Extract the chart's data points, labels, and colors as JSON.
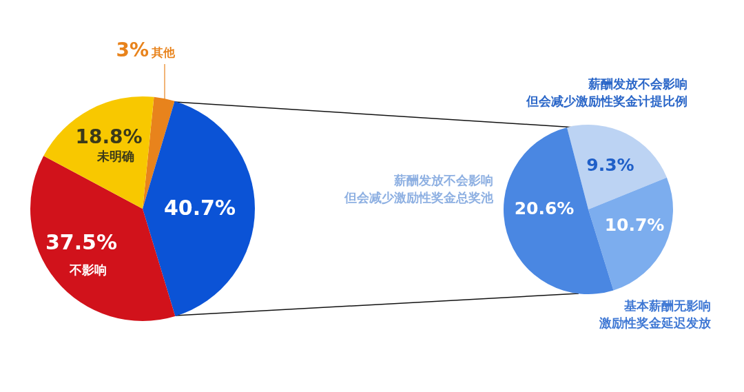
{
  "chart_data": [
    {
      "type": "pie",
      "categories": [
        "其他",
        null,
        "不影响",
        "未明确"
      ],
      "values": [
        3,
        40.7,
        37.5,
        18.8
      ],
      "colors": [
        "#e8831c",
        "#0b53d6",
        "#d1121b",
        "#f8c800"
      ],
      "value_labels": [
        "3%",
        "40.7%",
        "37.5%",
        "18.8%"
      ]
    },
    {
      "type": "pie",
      "categories": [
        "薪酬发放不会影响但会减少激励性奖金计提比例",
        "基本薪酬无影响激励性奖金延迟发放",
        "薪酬发放不会影响但会减少激励性奖金总奖池"
      ],
      "values": [
        9.3,
        10.7,
        20.6
      ],
      "colors": [
        "#bcd3f3",
        "#7cadee",
        "#4a87e2"
      ],
      "value_labels": [
        "9.3%",
        "10.7%",
        "20.6%"
      ]
    }
  ]
}
